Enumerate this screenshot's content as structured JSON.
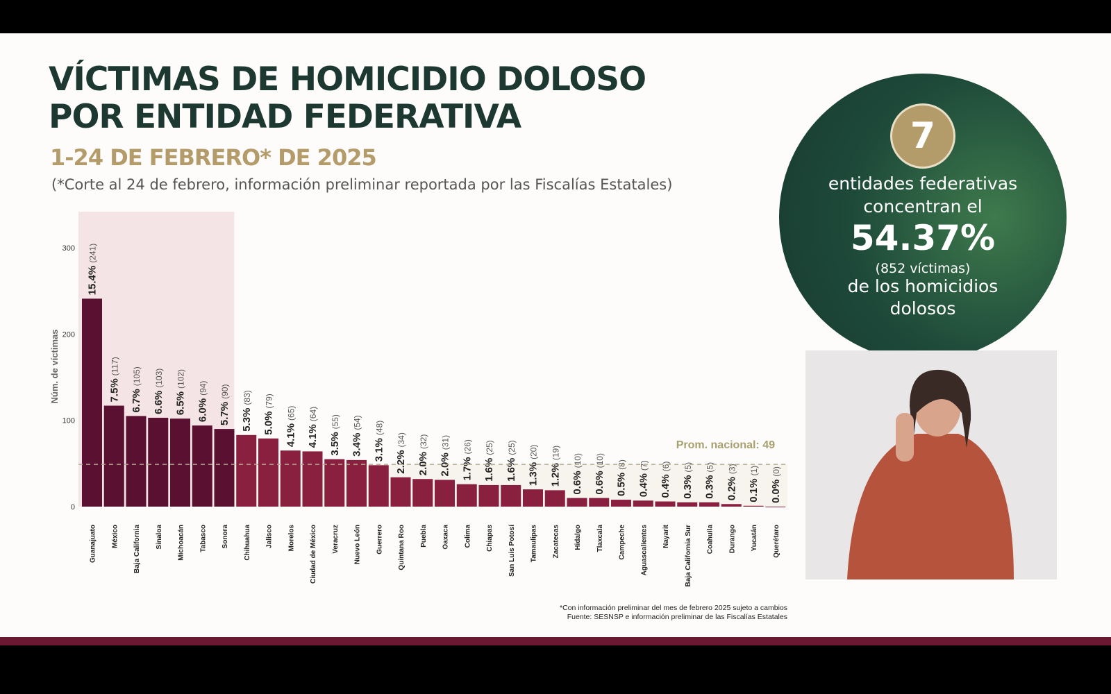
{
  "title_line1": "VÍCTIMAS DE HOMICIDIO DOLOSO",
  "title_line2": "POR ENTIDAD FEDERATIVA",
  "subtitle": "1-24 DE FEBRERO* DE 2025",
  "note": "(*Corte al 24 de febrero, información preliminar reportada por las Fiscalías Estatales)",
  "footnote1": "*Con información preliminar del mes de febrero 2025 sujeto a cambios",
  "footnote2": "Fuente: SESNSP e información preliminar de las Fiscalías Estatales",
  "callout": {
    "number": "7",
    "line1": "entidades federativas",
    "line2": "concentran el",
    "percent": "54.37%",
    "victims": "(852  víctimas)",
    "line3": "de los homicidios",
    "line4": "dolosos"
  },
  "colors": {
    "top7": "#5a1030",
    "rest": "#8a2040",
    "highlight": "#f5e4e6",
    "average": "#a8a070",
    "circle": "#1e4a3a",
    "gold": "#b49c6a"
  },
  "chart_data": {
    "type": "bar",
    "ylabel": "Núm. de víctimas",
    "ylim": [
      0,
      300
    ],
    "yticks": [
      "0",
      "100",
      "200",
      "300"
    ],
    "average_label": "Prom. nacional: 49",
    "average": 49,
    "highlighted_count": 7,
    "categories": [
      "Guanajuato",
      "México",
      "Baja California",
      "Sinaloa",
      "Michoacán",
      "Tabasco",
      "Sonora",
      "Chihuahua",
      "Jalisco",
      "Morelos",
      "Ciudad de México",
      "Veracruz",
      "Nuevo León",
      "Guerrero",
      "Quintana Roo",
      "Puebla",
      "Oaxaca",
      "Colima",
      "Chiapas",
      "San Luis Potosí",
      "Tamaulipas",
      "Zacatecas",
      "Hidalgo",
      "Tlaxcala",
      "Campeche",
      "Aguascalientes",
      "Nayarit",
      "Baja California Sur",
      "Coahuila",
      "Durango",
      "Yucatán",
      "Querétaro"
    ],
    "values": [
      241,
      117,
      105,
      103,
      102,
      94,
      90,
      83,
      79,
      65,
      64,
      55,
      54,
      48,
      34,
      32,
      31,
      26,
      25,
      25,
      20,
      19,
      10,
      10,
      8,
      7,
      6,
      5,
      5,
      3,
      1,
      0
    ],
    "pct_labels": [
      "15.4%",
      "7.5%",
      "6.7%",
      "6.6%",
      "6.5%",
      "6.0%",
      "5.7%",
      "5.3%",
      "5.0%",
      "4.1%",
      "4.1%",
      "3.5%",
      "3.4%",
      "3.1%",
      "2.2%",
      "2.0%",
      "2.0%",
      "1.7%",
      "1.6%",
      "1.6%",
      "1.3%",
      "1.2%",
      "0.6%",
      "0.6%",
      "0.5%",
      "0.4%",
      "0.4%",
      "0.3%",
      "0.3%",
      "0.2%",
      "0.1%",
      "0.0%"
    ],
    "count_labels": [
      "(241)",
      "(117)",
      "(105)",
      "(103)",
      "(102)",
      "(94)",
      "(90)",
      "(83)",
      "(79)",
      "(65)",
      "(64)",
      "(55)",
      "(54)",
      "(48)",
      "(34)",
      "(32)",
      "(31)",
      "(26)",
      "(25)",
      "(25)",
      "(20)",
      "(19)",
      "(10)",
      "(10)",
      "(8)",
      "(7)",
      "(6)",
      "(5)",
      "(5)",
      "(3)",
      "(1)",
      "(0)"
    ]
  }
}
